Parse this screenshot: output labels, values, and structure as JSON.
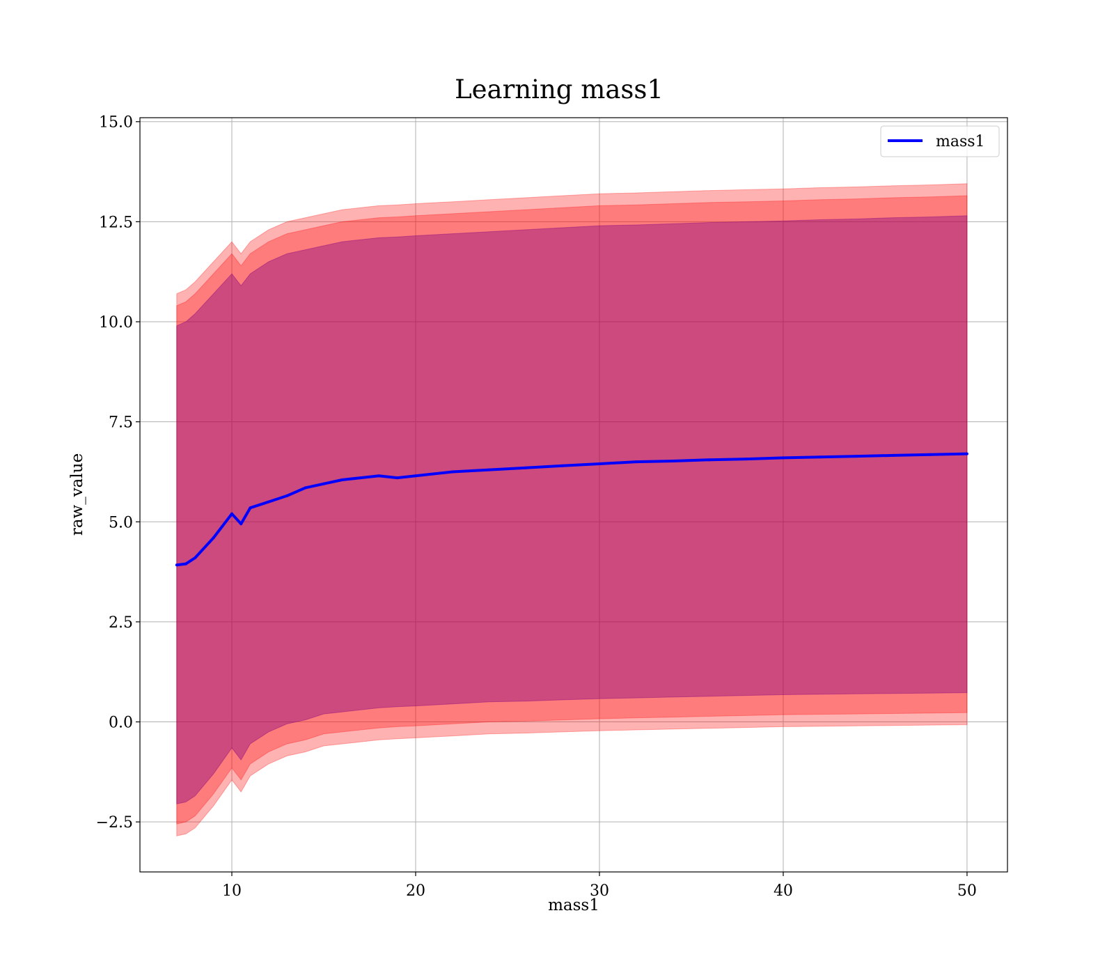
{
  "chart_data": {
    "type": "line",
    "title": "Learning mass1",
    "xlabel": "mass1",
    "ylabel": "raw_value",
    "xlim": [
      5,
      52.2
    ],
    "ylim": [
      -3.75,
      15.1
    ],
    "x_ticks": [
      10,
      20,
      30,
      40,
      50
    ],
    "x_tick_labels": [
      "10",
      "20",
      "30",
      "40",
      "50"
    ],
    "y_ticks": [
      -2.5,
      0.0,
      2.5,
      5.0,
      7.5,
      10.0,
      12.5,
      15.0
    ],
    "y_tick_labels": [
      "−2.5",
      "0.0",
      "2.5",
      "5.0",
      "7.5",
      "10.0",
      "12.5",
      "15.0"
    ],
    "grid": true,
    "legend": {
      "position": "top-right",
      "entries": [
        "mass1"
      ]
    },
    "series": [
      {
        "name": "mass1",
        "color": "#0000ff",
        "x": [
          7,
          7.5,
          8,
          9,
          10,
          10.5,
          11,
          12,
          13,
          14,
          15,
          16,
          17,
          18,
          19,
          20,
          22,
          24,
          26,
          28,
          30,
          32,
          34,
          36,
          38,
          40,
          42,
          44,
          46,
          48,
          50
        ],
        "y": [
          3.92,
          3.95,
          4.1,
          4.6,
          5.2,
          4.95,
          5.35,
          5.5,
          5.65,
          5.85,
          5.95,
          6.05,
          6.1,
          6.15,
          6.1,
          6.15,
          6.25,
          6.3,
          6.35,
          6.4,
          6.45,
          6.5,
          6.52,
          6.55,
          6.57,
          6.6,
          6.62,
          6.64,
          6.66,
          6.68,
          6.7
        ]
      }
    ],
    "bands": [
      {
        "color": "#ff0000",
        "opacity": 0.3,
        "x": [
          7,
          7.5,
          8,
          9,
          10,
          10.5,
          11,
          12,
          13,
          14,
          15,
          16,
          17,
          18,
          19,
          20,
          22,
          24,
          26,
          28,
          30,
          32,
          34,
          36,
          38,
          40,
          42,
          44,
          46,
          48,
          50
        ],
        "upper": [
          10.7,
          10.8,
          11.0,
          11.5,
          12.0,
          11.7,
          12.0,
          12.3,
          12.5,
          12.6,
          12.7,
          12.8,
          12.85,
          12.9,
          12.92,
          12.95,
          13.0,
          13.05,
          13.1,
          13.15,
          13.2,
          13.22,
          13.25,
          13.28,
          13.3,
          13.32,
          13.35,
          13.37,
          13.4,
          13.42,
          13.45
        ],
        "lower": [
          -2.85,
          -2.8,
          -2.65,
          -2.1,
          -1.45,
          -1.75,
          -1.35,
          -1.05,
          -0.85,
          -0.75,
          -0.6,
          -0.55,
          -0.5,
          -0.45,
          -0.42,
          -0.4,
          -0.35,
          -0.3,
          -0.28,
          -0.25,
          -0.22,
          -0.2,
          -0.18,
          -0.16,
          -0.14,
          -0.12,
          -0.11,
          -0.1,
          -0.09,
          -0.08,
          -0.07
        ]
      },
      {
        "color": "#ff0000",
        "opacity": 0.3,
        "x": [
          7,
          7.5,
          8,
          9,
          10,
          10.5,
          11,
          12,
          13,
          14,
          15,
          16,
          17,
          18,
          19,
          20,
          22,
          24,
          26,
          28,
          30,
          32,
          34,
          36,
          38,
          40,
          42,
          44,
          46,
          48,
          50
        ],
        "upper": [
          10.4,
          10.5,
          10.7,
          11.2,
          11.7,
          11.4,
          11.7,
          12.0,
          12.2,
          12.3,
          12.4,
          12.5,
          12.55,
          12.6,
          12.62,
          12.65,
          12.7,
          12.75,
          12.8,
          12.85,
          12.9,
          12.92,
          12.95,
          12.98,
          13.0,
          13.02,
          13.05,
          13.07,
          13.1,
          13.12,
          13.15
        ],
        "lower": [
          -2.55,
          -2.5,
          -2.35,
          -1.8,
          -1.15,
          -1.45,
          -1.05,
          -0.75,
          -0.55,
          -0.45,
          -0.3,
          -0.25,
          -0.2,
          -0.15,
          -0.12,
          -0.1,
          -0.05,
          0.0,
          0.02,
          0.05,
          0.08,
          0.1,
          0.12,
          0.14,
          0.16,
          0.18,
          0.19,
          0.2,
          0.21,
          0.22,
          0.23
        ]
      },
      {
        "color": "#800080",
        "opacity": 0.4,
        "x": [
          7,
          7.5,
          8,
          9,
          10,
          10.5,
          11,
          12,
          13,
          14,
          15,
          16,
          17,
          18,
          19,
          20,
          22,
          24,
          26,
          28,
          30,
          32,
          34,
          36,
          38,
          40,
          42,
          44,
          46,
          48,
          50
        ],
        "upper": [
          9.9,
          10.0,
          10.2,
          10.7,
          11.2,
          10.9,
          11.2,
          11.5,
          11.7,
          11.8,
          11.9,
          12.0,
          12.05,
          12.1,
          12.12,
          12.15,
          12.2,
          12.25,
          12.3,
          12.35,
          12.4,
          12.42,
          12.45,
          12.48,
          12.5,
          12.52,
          12.55,
          12.57,
          12.6,
          12.62,
          12.65
        ],
        "lower": [
          -2.05,
          -2.0,
          -1.85,
          -1.3,
          -0.65,
          -0.95,
          -0.55,
          -0.25,
          -0.05,
          0.05,
          0.2,
          0.25,
          0.3,
          0.35,
          0.38,
          0.4,
          0.45,
          0.5,
          0.52,
          0.55,
          0.58,
          0.6,
          0.62,
          0.64,
          0.66,
          0.68,
          0.69,
          0.7,
          0.71,
          0.72,
          0.73
        ]
      }
    ]
  }
}
